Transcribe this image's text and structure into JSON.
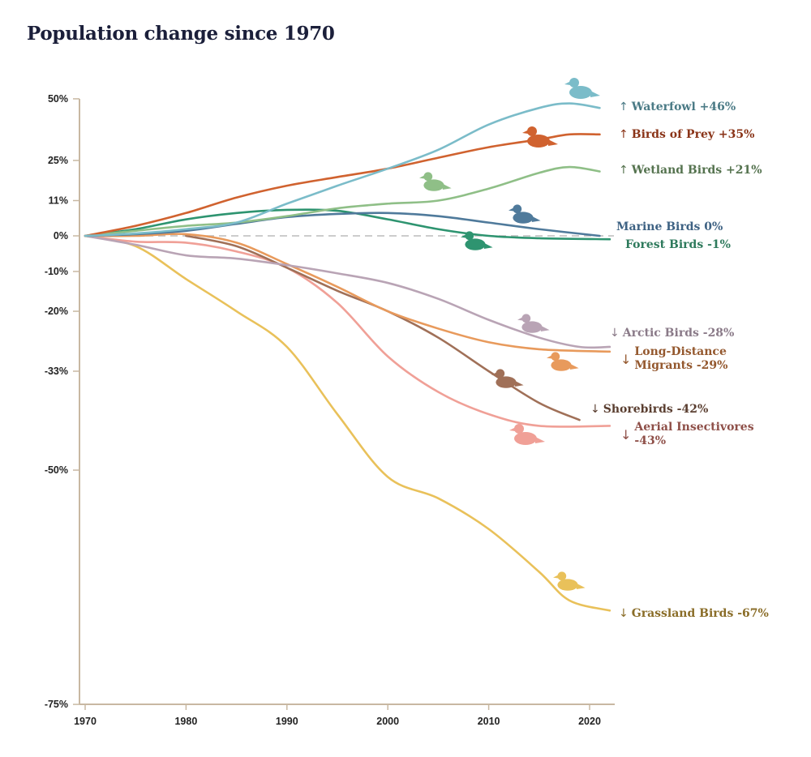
{
  "chart_data": {
    "type": "line",
    "title": "Population change since 1970",
    "xlabel": "",
    "ylabel": "",
    "yscale": "log-ratio",
    "xlim": [
      1970,
      2022
    ],
    "ylim": [
      -75,
      50
    ],
    "xticks": [
      "1970",
      "1980",
      "1990",
      "2000",
      "2010",
      "2020"
    ],
    "yticks": [
      50,
      25,
      11,
      0,
      -10,
      -20,
      -33,
      -50,
      -75
    ],
    "ytick_labels": [
      "50%",
      "25%",
      "11%",
      "0%",
      "-10%",
      "-20%",
      "-33%",
      "-50%",
      "-75%"
    ],
    "baseline": "dashed line at 0%",
    "grid": false,
    "legend": "direct labels at line ends (right)",
    "series": [
      {
        "name": "Waterfowl",
        "label": "Waterfowl +46%",
        "arrow": "↑",
        "color": "#7bbcc9",
        "label_color": "#4a7a85",
        "icon": "duck-icon",
        "x": [
          1970,
          1975,
          1980,
          1985,
          1990,
          1995,
          2000,
          2005,
          2010,
          2015,
          2018,
          2021
        ],
        "y": [
          0,
          0.7,
          2,
          4,
          10,
          16,
          22,
          29,
          39,
          46,
          48,
          46
        ]
      },
      {
        "name": "Birds of Prey",
        "label": "Birds of Prey +35%",
        "arrow": "↑",
        "color": "#d0622f",
        "label_color": "#8a3418",
        "icon": "hawk-icon",
        "x": [
          1970,
          1975,
          1980,
          1985,
          1990,
          1995,
          2000,
          2005,
          2010,
          2015,
          2018,
          2021
        ],
        "y": [
          0,
          3,
          7,
          12,
          16,
          19,
          22,
          26,
          30,
          33,
          35,
          35
        ]
      },
      {
        "name": "Wetland Birds",
        "label": "Wetland Birds +21%",
        "arrow": "↑",
        "color": "#8fbf87",
        "label_color": "#55734f",
        "icon": "heron-icon",
        "x": [
          1970,
          1975,
          1980,
          1985,
          1990,
          1995,
          2000,
          2005,
          2010,
          2015,
          2018,
          2021
        ],
        "y": [
          0,
          1.5,
          3,
          4,
          6,
          8.5,
          10,
          11,
          15,
          20.5,
          22.6,
          21
        ]
      },
      {
        "name": "Marine Birds",
        "label": "Marine Birds 0%",
        "arrow": "",
        "color": "#4f7a9b",
        "label_color": "#3e6283",
        "icon": "puffin-icon",
        "x": [
          1970,
          1975,
          1980,
          1985,
          1990,
          1995,
          2000,
          2005,
          2010,
          2015,
          2021
        ],
        "y": [
          0,
          0.5,
          1.5,
          3.6,
          5.7,
          6.7,
          7,
          6,
          4,
          2,
          0
        ]
      },
      {
        "name": "Forest Birds",
        "label": "Forest Birds -1%",
        "arrow": "",
        "color": "#2e9470",
        "label_color": "#2e7a5c",
        "icon": "cuckoo-icon",
        "x": [
          1970,
          1975,
          1980,
          1985,
          1990,
          1995,
          2000,
          2005,
          2010,
          2015,
          2022
        ],
        "y": [
          0,
          2,
          5,
          7,
          8,
          7.7,
          5,
          2,
          0,
          -0.7,
          -1
        ]
      },
      {
        "name": "Arctic Birds",
        "label": "Arctic Birds -28%",
        "arrow": "↓",
        "color": "#b9a4b5",
        "label_color": "#8a7a88",
        "icon": "ptarmigan-icon",
        "x": [
          1970,
          1975,
          1980,
          1985,
          1990,
          1995,
          2000,
          2005,
          2010,
          2015,
          2019,
          2022
        ],
        "y": [
          0,
          -2.6,
          -5.6,
          -6.5,
          -8.3,
          -10.5,
          -13,
          -17,
          -22,
          -26,
          -28,
          -28
        ]
      },
      {
        "name": "Long-Distance Migrants",
        "label": "Long-Distance Migrants -29%",
        "label_lines": [
          "Long-Distance",
          "Migrants -29%"
        ],
        "arrow": "↓",
        "color": "#e89a5c",
        "label_color": "#94582e",
        "icon": "warbler-icon",
        "x": [
          1970,
          1975,
          1980,
          1985,
          1990,
          1995,
          2000,
          2005,
          2010,
          2015,
          2022
        ],
        "y": [
          0,
          0,
          0.5,
          -2,
          -8,
          -14,
          -20,
          -24,
          -27,
          -28.5,
          -29
        ]
      },
      {
        "name": "Shorebirds",
        "label": "Shorebirds -42%",
        "arrow": "↓",
        "color": "#a07058",
        "label_color": "#5a3e30",
        "icon": "curlew-icon",
        "x": [
          1980,
          1985,
          1990,
          1995,
          2000,
          2005,
          2010,
          2015,
          2019
        ],
        "y": [
          0,
          -3,
          -9,
          -15,
          -20,
          -26,
          -33,
          -39,
          -42
        ]
      },
      {
        "name": "Aerial Insectivores",
        "label": "Aerial Insectivores -43%",
        "label_lines": [
          "Aerial Insectivores",
          "-43%"
        ],
        "arrow": "↓",
        "color": "#f0a097",
        "label_color": "#8e4f48",
        "icon": "swallow-icon",
        "x": [
          1970,
          1975,
          1980,
          1985,
          1990,
          1995,
          2000,
          2005,
          2010,
          2015,
          2022
        ],
        "y": [
          0,
          -1.7,
          -2,
          -4.5,
          -9,
          -18,
          -30,
          -37,
          -41,
          -43,
          -43
        ]
      },
      {
        "name": "Grassland Birds",
        "label": "Grassland Birds -67%",
        "arrow": "↓",
        "color": "#e9c15a",
        "label_color": "#8a6d28",
        "icon": "meadowlark-icon",
        "x": [
          1970,
          1975,
          1980,
          1985,
          1990,
          1995,
          2000,
          2005,
          2010,
          2015,
          2018,
          2022
        ],
        "y": [
          0,
          -3,
          -12,
          -20,
          -28,
          -41,
          -51,
          -54,
          -58,
          -63,
          -66,
          -67
        ]
      }
    ]
  }
}
